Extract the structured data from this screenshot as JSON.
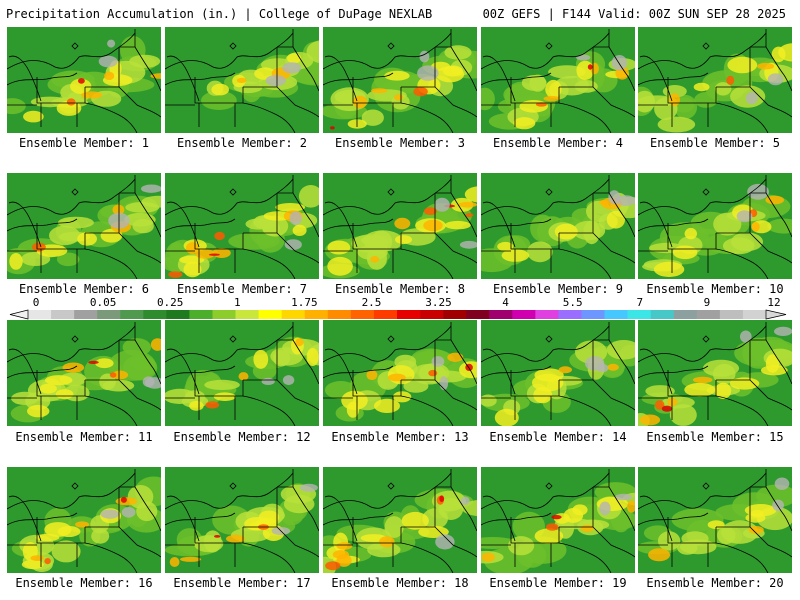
{
  "header": {
    "title_left": "Precipitation Accumulation (in.) | College of DuPage NEXLAB",
    "title_right": "00Z GEFS | F144 Valid: 00Z SUN SEP 28 2025"
  },
  "member_label_prefix": "Ensemble Member: ",
  "members": [
    {
      "id": 1,
      "label": "Ensemble Member: 1",
      "intensity": 0.55
    },
    {
      "id": 2,
      "label": "Ensemble Member: 2",
      "intensity": 0.3
    },
    {
      "id": 3,
      "label": "Ensemble Member: 3",
      "intensity": 0.6
    },
    {
      "id": 4,
      "label": "Ensemble Member: 4",
      "intensity": 0.55
    },
    {
      "id": 5,
      "label": "Ensemble Member: 5",
      "intensity": 0.45
    },
    {
      "id": 6,
      "label": "Ensemble Member: 6",
      "intensity": 0.4
    },
    {
      "id": 7,
      "label": "Ensemble Member: 7",
      "intensity": 0.7
    },
    {
      "id": 8,
      "label": "Ensemble Member: 8",
      "intensity": 0.8
    },
    {
      "id": 9,
      "label": "Ensemble Member: 9",
      "intensity": 0.35
    },
    {
      "id": 10,
      "label": "Ensemble Member: 10",
      "intensity": 0.45
    },
    {
      "id": 11,
      "label": "Ensemble Member: 11",
      "intensity": 0.55
    },
    {
      "id": 12,
      "label": "Ensemble Member: 12",
      "intensity": 0.45
    },
    {
      "id": 13,
      "label": "Ensemble Member: 13",
      "intensity": 0.6
    },
    {
      "id": 14,
      "label": "Ensemble Member: 14",
      "intensity": 0.35
    },
    {
      "id": 15,
      "label": "Ensemble Member: 15",
      "intensity": 0.55
    },
    {
      "id": 16,
      "label": "Ensemble Member: 16",
      "intensity": 0.6
    },
    {
      "id": 17,
      "label": "Ensemble Member: 17",
      "intensity": 0.55
    },
    {
      "id": 18,
      "label": "Ensemble Member: 18",
      "intensity": 0.7
    },
    {
      "id": 19,
      "label": "Ensemble Member: 19",
      "intensity": 0.55
    },
    {
      "id": 20,
      "label": "Ensemble Member: 20",
      "intensity": 0.35
    }
  ],
  "colorbar": {
    "tick_labels": [
      "0",
      "0.05",
      "0.25",
      "1",
      "1.75",
      "2.5",
      "3.25",
      "4",
      "5.5",
      "7",
      "9",
      "12"
    ],
    "colors": [
      "#e6e6e6",
      "#c8c8c8",
      "#a0a0a0",
      "#7a9a7a",
      "#4f9a4f",
      "#2e8b2e",
      "#1f7a1f",
      "#4caf2b",
      "#8ccd2b",
      "#c8e63c",
      "#ffff00",
      "#ffd700",
      "#ffb000",
      "#ff8c00",
      "#ff6400",
      "#ff3c00",
      "#e60000",
      "#c80000",
      "#a00000",
      "#800020",
      "#a0006e",
      "#d000b0",
      "#e040e0",
      "#9a6eff",
      "#6e96ff",
      "#46c8ff",
      "#3ce6e6",
      "#46c8c8",
      "#8ca0a0",
      "#a0a0a0",
      "#bebebe",
      "#d2d2d2"
    ]
  }
}
